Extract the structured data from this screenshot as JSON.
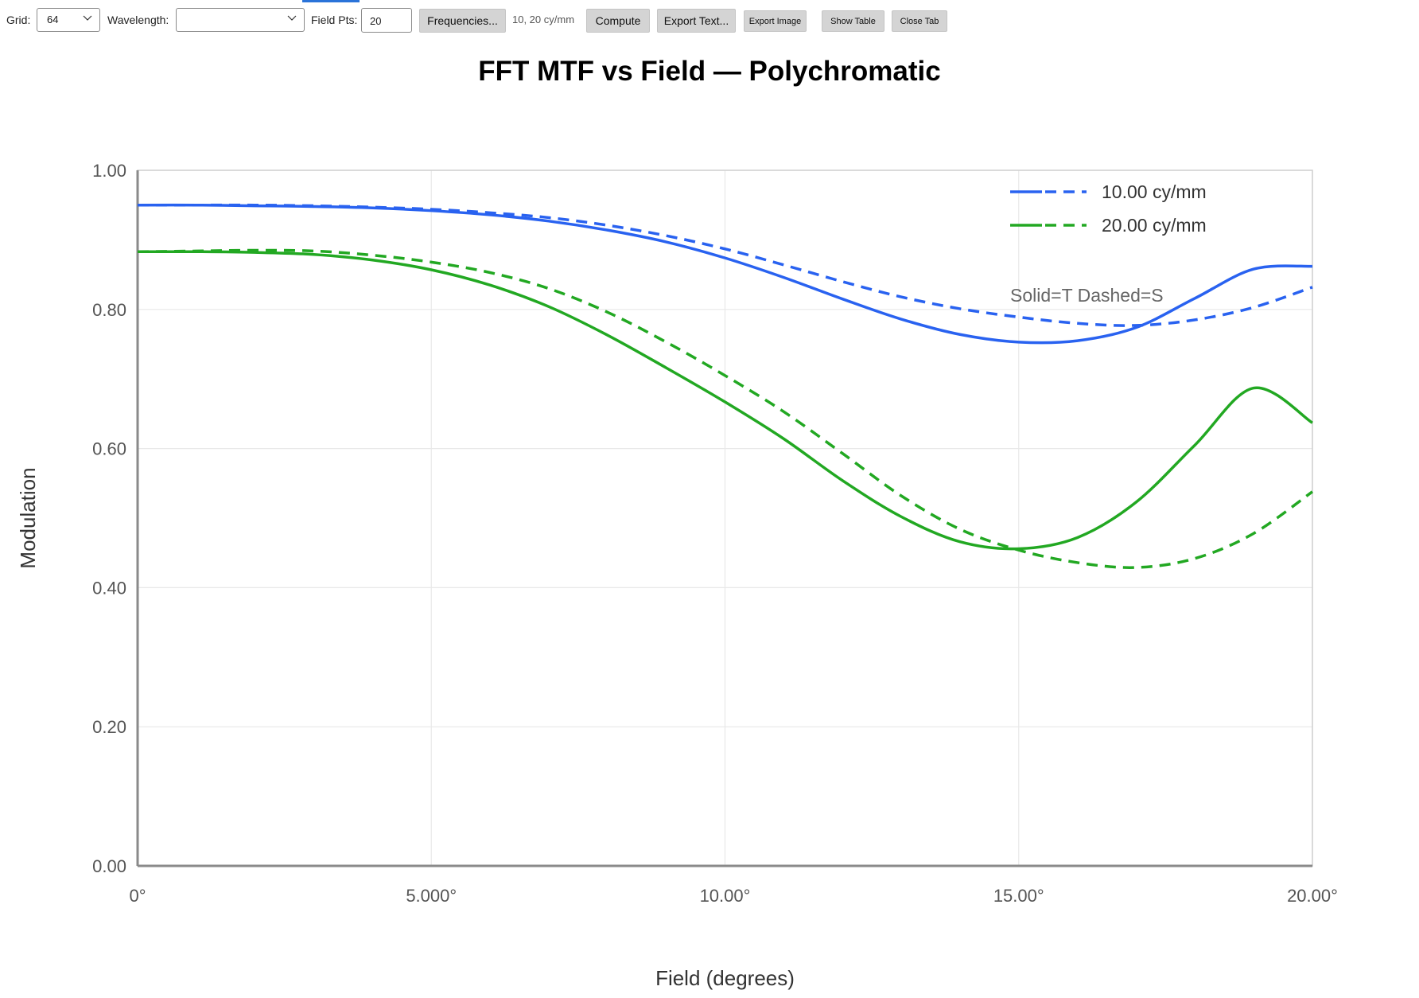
{
  "toolbar": {
    "grid_label": "Grid:",
    "grid_value": "64",
    "wavelength_label": "Wavelength:",
    "wavelength_value": "",
    "field_pts_label": "Field Pts:",
    "field_pts_value": "20",
    "frequencies_button": "Frequencies...",
    "frequencies_info": "10, 20 cy/mm",
    "compute_button": "Compute",
    "export_text_button": "Export Text...",
    "export_image_button": "Export Image",
    "show_table_button": "Show Table",
    "close_tab_button": "Close Tab"
  },
  "colors": {
    "blue": "#2962f0",
    "green": "#22a822",
    "accent": "#2a73d9"
  },
  "chart_data": {
    "type": "line",
    "title": "FFT MTF vs Field — Polychromatic",
    "xlabel": "Field (degrees)",
    "ylabel": "Modulation",
    "xlim": [
      0,
      20
    ],
    "ylim": [
      0,
      1
    ],
    "xticks": [
      0,
      5,
      10,
      15,
      20
    ],
    "xtick_labels": [
      "0°",
      "5.000°",
      "10.00°",
      "15.00°",
      "20.00°"
    ],
    "yticks": [
      0,
      0.2,
      0.4,
      0.6,
      0.8,
      1.0
    ],
    "ytick_labels": [
      "0.00",
      "0.20",
      "0.40",
      "0.60",
      "0.80",
      "1.00"
    ],
    "grid": true,
    "legend_position": "top-right",
    "legend_note": "Solid=T Dashed=S",
    "series": [
      {
        "name": "10.00 cy/mm",
        "color": "#2962f0",
        "style": "solid",
        "x": [
          0,
          1,
          2,
          3,
          4,
          5,
          6,
          7,
          8,
          9,
          10,
          11,
          12,
          13,
          14,
          15,
          16,
          17,
          18,
          19,
          20
        ],
        "y": [
          0.95,
          0.95,
          0.949,
          0.948,
          0.946,
          0.942,
          0.936,
          0.927,
          0.914,
          0.897,
          0.874,
          0.846,
          0.815,
          0.786,
          0.764,
          0.753,
          0.755,
          0.774,
          0.816,
          0.858,
          0.862
        ]
      },
      {
        "name": "10.00 cy/mm",
        "color": "#2962f0",
        "style": "dashed",
        "x": [
          0,
          1,
          2,
          3,
          4,
          5,
          6,
          7,
          8,
          9,
          10,
          11,
          12,
          13,
          14,
          15,
          16,
          17,
          18,
          19,
          20
        ],
        "y": [
          0.95,
          0.95,
          0.95,
          0.949,
          0.947,
          0.944,
          0.939,
          0.932,
          0.921,
          0.906,
          0.887,
          0.864,
          0.84,
          0.818,
          0.801,
          0.789,
          0.78,
          0.777,
          0.785,
          0.803,
          0.832
        ]
      },
      {
        "name": "20.00 cy/mm",
        "color": "#22a822",
        "style": "solid",
        "x": [
          0,
          1,
          2,
          3,
          4,
          5,
          6,
          7,
          8,
          9,
          10,
          11,
          12,
          13,
          14,
          15,
          16,
          17,
          18,
          19,
          20
        ],
        "y": [
          0.883,
          0.883,
          0.882,
          0.879,
          0.871,
          0.857,
          0.835,
          0.804,
          0.763,
          0.716,
          0.667,
          0.614,
          0.554,
          0.502,
          0.466,
          0.456,
          0.472,
          0.523,
          0.605,
          0.687,
          0.637
        ]
      },
      {
        "name": "20.00 cy/mm",
        "color": "#22a822",
        "style": "dashed",
        "x": [
          0,
          1,
          2,
          3,
          4,
          5,
          6,
          7,
          8,
          9,
          10,
          11,
          12,
          13,
          14,
          15,
          16,
          17,
          18,
          19,
          20
        ],
        "y": [
          0.883,
          0.884,
          0.885,
          0.884,
          0.878,
          0.868,
          0.853,
          0.83,
          0.796,
          0.753,
          0.705,
          0.653,
          0.593,
          0.532,
          0.484,
          0.454,
          0.436,
          0.429,
          0.442,
          0.478,
          0.538
        ]
      }
    ]
  }
}
